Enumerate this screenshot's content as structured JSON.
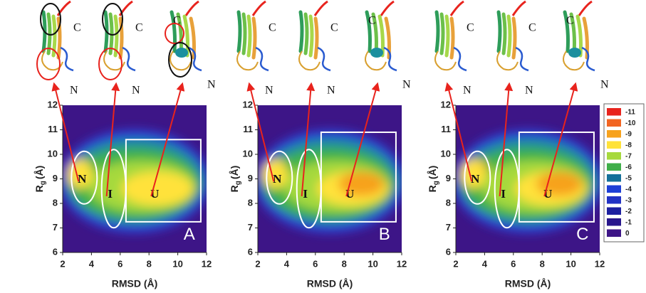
{
  "chart_data": [
    {
      "type": "landscape",
      "panel": "A",
      "xlabel": "RMSD (Å)",
      "ylabel": {
        "main": "R",
        "sub": "g",
        "unit": "(Å)"
      },
      "xlim": [
        2,
        12
      ],
      "xticks": [
        2,
        4,
        6,
        8,
        10,
        12
      ],
      "ylim": [
        6,
        12
      ],
      "yticks": [
        6,
        7,
        8,
        9,
        10,
        11,
        12
      ],
      "annotations": [
        "N",
        "I",
        "U"
      ],
      "structure_labels": [
        [
          "C",
          "N"
        ],
        [
          "C",
          "N"
        ],
        [
          "C",
          "N"
        ]
      ]
    },
    {
      "type": "landscape",
      "panel": "B",
      "xlabel": "RMSD (Å)",
      "ylabel": {
        "main": "R",
        "sub": "g",
        "unit": "(Å)"
      },
      "xlim": [
        2,
        12
      ],
      "xticks": [
        2,
        4,
        6,
        8,
        10,
        12
      ],
      "ylim": [
        6,
        12
      ],
      "yticks": [
        6,
        7,
        8,
        9,
        10,
        11,
        12
      ],
      "annotations": [
        "N",
        "I",
        "U"
      ],
      "structure_labels": [
        [
          "C",
          "N"
        ],
        [
          "C",
          "N"
        ],
        [
          "C",
          "N"
        ]
      ]
    },
    {
      "type": "landscape",
      "panel": "C",
      "xlabel": "RMSD (Å)",
      "ylabel": {
        "main": "R",
        "sub": "g",
        "unit": "(Å)"
      },
      "xlim": [
        2,
        12
      ],
      "xticks": [
        2,
        4,
        6,
        8,
        10,
        12
      ],
      "ylim": [
        6,
        12
      ],
      "yticks": [
        6,
        7,
        8,
        9,
        10,
        11,
        12
      ],
      "annotations": [
        "N",
        "I",
        "U"
      ],
      "structure_labels": [
        [
          "C",
          "N"
        ],
        [
          "C",
          "N"
        ],
        [
          "C",
          "N"
        ]
      ]
    }
  ],
  "colorbar": {
    "levels": [
      {
        "value": -11,
        "color": "#e8231d"
      },
      {
        "value": -10,
        "color": "#f26522"
      },
      {
        "value": -9,
        "color": "#f7a21d"
      },
      {
        "value": -8,
        "color": "#ffe23a"
      },
      {
        "value": -7,
        "color": "#a6d93c"
      },
      {
        "value": -6,
        "color": "#3fae49"
      },
      {
        "value": -5,
        "color": "#14709a"
      },
      {
        "value": -4,
        "color": "#1d3fd6"
      },
      {
        "value": -3,
        "color": "#2232c4"
      },
      {
        "value": -2,
        "color": "#1d20a0"
      },
      {
        "value": -1,
        "color": "#28168c"
      },
      {
        "value": 0,
        "color": "#3d1587"
      }
    ]
  }
}
